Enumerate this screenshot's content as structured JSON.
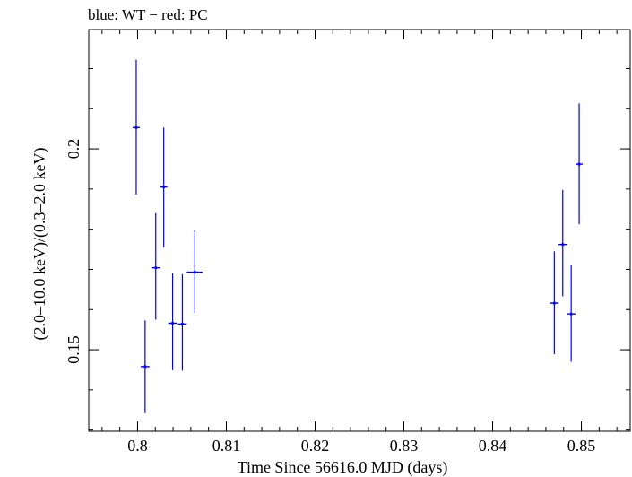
{
  "chart_data": {
    "type": "scatter",
    "title": "blue: WT − red: PC",
    "xlabel": "Time Since 56616.0 MJD (days)",
    "ylabel": "(2.0–10.0 keV)/(0.3–2.0 keV)",
    "xlim": [
      0.7945,
      0.8555
    ],
    "ylim": [
      0.1297,
      0.2297
    ],
    "x_ticks": [
      {
        "value": 0.8,
        "label": "0.8"
      },
      {
        "value": 0.81,
        "label": "0.81"
      },
      {
        "value": 0.82,
        "label": "0.82"
      },
      {
        "value": 0.83,
        "label": "0.83"
      },
      {
        "value": 0.84,
        "label": "0.84"
      },
      {
        "value": 0.85,
        "label": "0.85"
      }
    ],
    "y_ticks": [
      {
        "value": 0.15,
        "label": "0.15"
      },
      {
        "value": 0.2,
        "label": "0.2"
      }
    ],
    "x_minor_step": 0.002,
    "y_minor_step": 0.01,
    "series": [
      {
        "name": "WT",
        "color": "#0000ff",
        "points": [
          {
            "x": 0.79985,
            "y": 0.2053,
            "xerr": 0.0004,
            "ylo": 0.1886,
            "yhi": 0.2222
          },
          {
            "x": 0.80085,
            "y": 0.1458,
            "xerr": 0.0005,
            "ylo": 0.1342,
            "yhi": 0.1573
          },
          {
            "x": 0.80205,
            "y": 0.1704,
            "xerr": 0.0005,
            "ylo": 0.1575,
            "yhi": 0.184
          },
          {
            "x": 0.80295,
            "y": 0.1905,
            "xerr": 0.0004,
            "ylo": 0.1755,
            "yhi": 0.2053
          },
          {
            "x": 0.80395,
            "y": 0.1566,
            "xerr": 0.0005,
            "ylo": 0.1449,
            "yhi": 0.169
          },
          {
            "x": 0.80505,
            "y": 0.1564,
            "xerr": 0.0005,
            "ylo": 0.1448,
            "yhi": 0.1688
          },
          {
            "x": 0.80645,
            "y": 0.1693,
            "xerr": 0.0009,
            "ylo": 0.1591,
            "yhi": 0.1797
          },
          {
            "x": 0.84695,
            "y": 0.1616,
            "xerr": 0.0005,
            "ylo": 0.1489,
            "yhi": 0.1745
          },
          {
            "x": 0.8479,
            "y": 0.1762,
            "xerr": 0.0005,
            "ylo": 0.1633,
            "yhi": 0.1898
          },
          {
            "x": 0.84885,
            "y": 0.1589,
            "xerr": 0.0005,
            "ylo": 0.147,
            "yhi": 0.171
          },
          {
            "x": 0.84975,
            "y": 0.1962,
            "xerr": 0.0004,
            "ylo": 0.1812,
            "yhi": 0.2113
          }
        ]
      }
    ]
  }
}
